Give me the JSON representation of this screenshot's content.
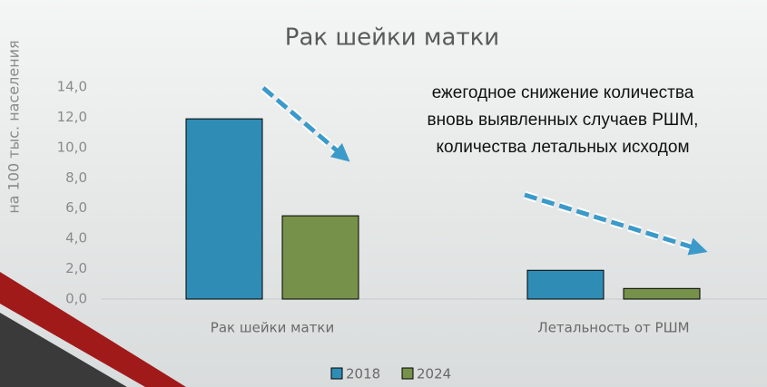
{
  "chart_data": {
    "type": "bar",
    "title": "Рак шейки матки",
    "y_axis_label": "на 100 тыс. населения",
    "annotation": [
      "ежегодное снижение количества",
      "вновь выявленных случаев РШМ,",
      "количества летальных исходом"
    ],
    "categories": [
      "Рак шейки матки",
      "Летальность от РШМ"
    ],
    "series": [
      {
        "name": "2018",
        "color": "#2f8db5",
        "values": [
          11.9,
          1.9
        ]
      },
      {
        "name": "2024",
        "color": "#76924a",
        "values": [
          5.5,
          0.7
        ]
      }
    ],
    "ylim": [
      0,
      14
    ],
    "yticks": [
      {
        "value": 0,
        "label": "0,0"
      },
      {
        "value": 2,
        "label": "2,0"
      },
      {
        "value": 4,
        "label": "4,0"
      },
      {
        "value": 6,
        "label": "6,0"
      },
      {
        "value": 8,
        "label": "8,0"
      },
      {
        "value": 10,
        "label": "10,0"
      },
      {
        "value": 12,
        "label": "12,0"
      },
      {
        "value": 14,
        "label": "14,0"
      }
    ],
    "legend": "bottom"
  }
}
